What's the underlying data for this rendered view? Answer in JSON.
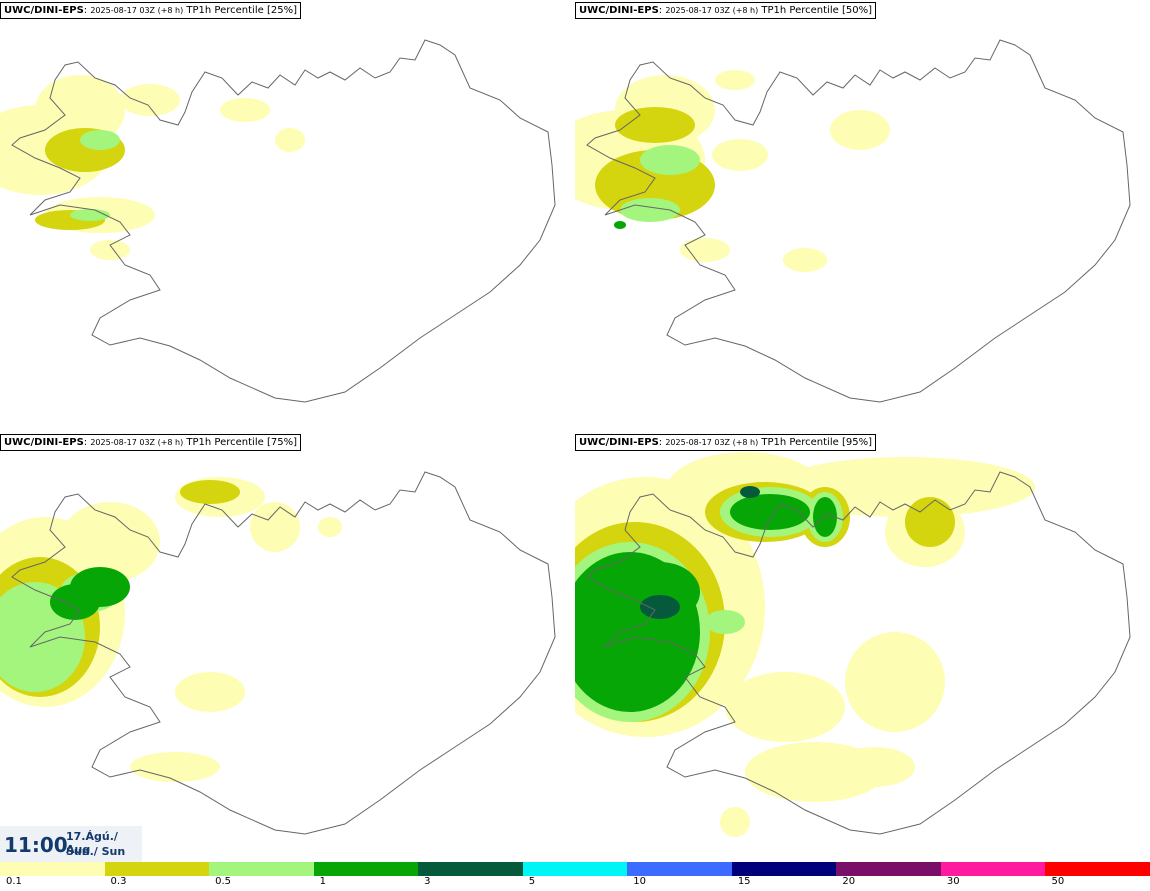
{
  "panels": [
    {
      "source": "UWC/DINI-EPS",
      "run": "2025-08-17 03Z (+8 h)",
      "title": "TP1h Percentile [25%]"
    },
    {
      "source": "UWC/DINI-EPS",
      "run": "2025-08-17 03Z (+8 h)",
      "title": "TP1h Percentile [50%]"
    },
    {
      "source": "UWC/DINI-EPS",
      "run": "2025-08-17 03Z (+8 h)",
      "title": "TP1h Percentile [75%]"
    },
    {
      "source": "UWC/DINI-EPS",
      "run": "2025-08-17 03Z (+8 h)",
      "title": "TP1h Percentile [95%]"
    }
  ],
  "time": {
    "value": "11:00",
    "date": "17.Ágú./ Aug",
    "day": "Sun./ Sun"
  },
  "legend": {
    "colors": [
      "#fdfdb3",
      "#d4d40f",
      "#a4f57d",
      "#06a606",
      "#065a3c",
      "#00f5f5",
      "#3b6cff",
      "#00007a",
      "#7a0f6a",
      "#ff1aa0",
      "#ff0000"
    ],
    "ticks": [
      "0.1",
      "0.3",
      "0.5",
      "1",
      "3",
      "5",
      "10",
      "15",
      "20",
      "30",
      "50"
    ]
  },
  "precip_colors": {
    "p01": "#fdfdb3",
    "p03": "#d4d40f",
    "p05": "#a4f57d",
    "p1": "#06a606",
    "p3": "#065a3c"
  }
}
